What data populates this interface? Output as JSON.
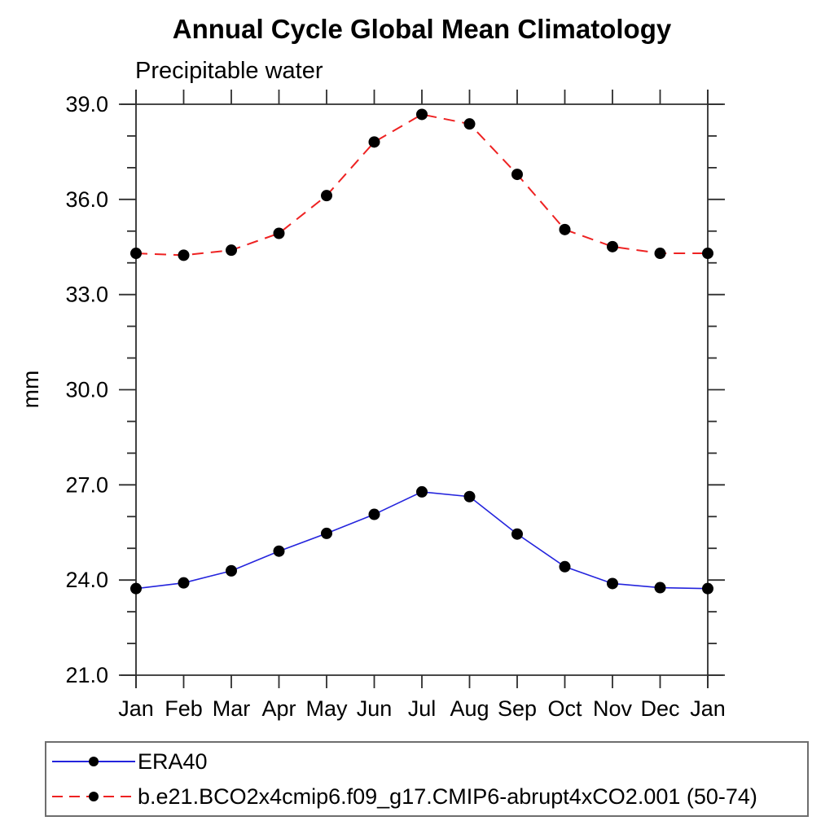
{
  "chart_data": {
    "type": "line",
    "title": "Annual Cycle Global Mean Climatology",
    "subtitle": "Precipitable water",
    "ylabel": "mm",
    "xlabel": "",
    "categories": [
      "Jan",
      "Feb",
      "Mar",
      "Apr",
      "May",
      "Jun",
      "Jul",
      "Aug",
      "Sep",
      "Oct",
      "Nov",
      "Dec",
      "Jan"
    ],
    "ylim": [
      21.0,
      39.0
    ],
    "y_major_ticks": [
      21.0,
      24.0,
      27.0,
      30.0,
      33.0,
      36.0,
      39.0
    ],
    "y_tick_labels": [
      "21.0",
      "24.0",
      "27.0",
      "30.0",
      "33.0",
      "36.0",
      "39.0"
    ],
    "y_minor_step": 1.0,
    "grid": false,
    "legend_position": "bottom",
    "marker_color": "#000000",
    "axis_color": "#2e2e2e",
    "series": [
      {
        "name": "ERA40",
        "color": "#2424dd",
        "line_style": "solid",
        "values": [
          23.73,
          23.91,
          24.29,
          24.91,
          25.47,
          26.07,
          26.78,
          26.63,
          25.45,
          24.42,
          23.89,
          23.76,
          23.73
        ]
      },
      {
        "name": "b.e21.BCO2x4cmip6.f09_g17.CMIP6-abrupt4xCO2.001 (50-74)",
        "color": "#ee2222",
        "line_style": "dashed",
        "values": [
          34.3,
          34.24,
          34.4,
          34.93,
          36.12,
          37.81,
          38.68,
          38.38,
          36.79,
          35.05,
          34.51,
          34.3,
          34.3
        ]
      }
    ]
  }
}
